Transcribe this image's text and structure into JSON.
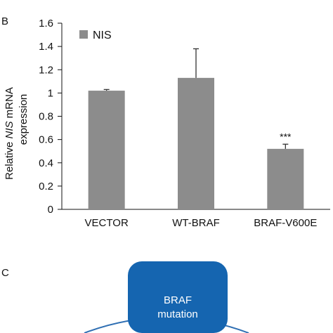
{
  "panel_b": {
    "label": "B"
  },
  "panel_c": {
    "label": "C"
  },
  "chart_data": {
    "type": "bar",
    "categories": [
      "VECTOR",
      "WT-BRAF",
      "BRAF-V600E"
    ],
    "series": [
      {
        "name": "NIS",
        "values": [
          1.02,
          1.13,
          0.52
        ],
        "errors": [
          0.01,
          0.25,
          0.04
        ]
      }
    ],
    "ylabel_line1_pre": "Relative ",
    "ylabel_line1_italic": "NIS",
    "ylabel_line1_post": " mRNA",
    "ylabel_line2": "expression",
    "ylim": [
      0,
      1.6
    ],
    "yticks": [
      "0",
      "0.2",
      "0.4",
      "0.6",
      "0.8",
      "1",
      "1.2",
      "1.4",
      "1.6"
    ],
    "significance": {
      "category": "BRAF-V600E",
      "label": "***"
    },
    "legend_position": "top-left",
    "bar_color": "#8c8c8c",
    "grid": false
  },
  "diagram": {
    "node": {
      "line1": "BRAF",
      "line2": "mutation",
      "color": "#1565b0"
    },
    "arc_color": "#2f6fb3"
  }
}
